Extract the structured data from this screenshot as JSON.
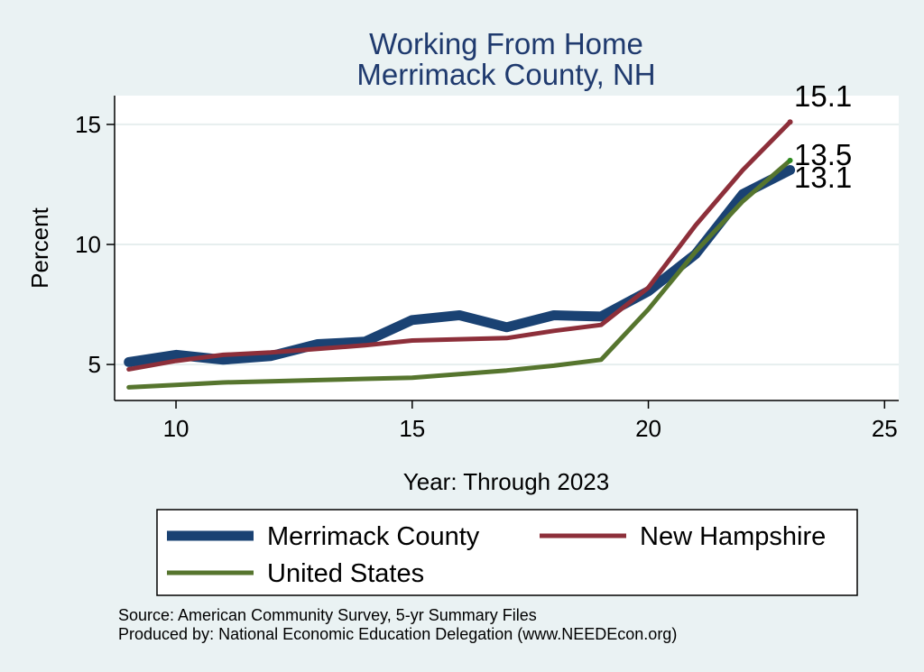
{
  "chart_data": {
    "type": "line",
    "title": [
      "Working From Home",
      "Merrimack County, NH"
    ],
    "xlabel": "Year: Through 2023",
    "ylabel": "Percent",
    "xlim": [
      8.7,
      25.3
    ],
    "ylim": [
      3.5,
      16.2
    ],
    "xticks": [
      10,
      15,
      20,
      25
    ],
    "yticks": [
      5,
      10,
      15
    ],
    "grid": true,
    "legend": "bottom",
    "series": [
      {
        "name": "Merrimack County",
        "color": "#1a4273",
        "x": [
          9,
          10,
          11,
          12,
          13,
          14,
          15,
          16,
          17,
          18,
          19,
          20,
          21,
          22,
          23
        ],
        "values": [
          5.1,
          5.4,
          5.2,
          5.35,
          5.85,
          5.95,
          6.85,
          7.05,
          6.55,
          7.05,
          7.0,
          8.05,
          9.6,
          12.1,
          13.1
        ],
        "end_label": "13.1"
      },
      {
        "name": "New Hampshire",
        "color": "#8d2f3a",
        "x": [
          9,
          10,
          11,
          12,
          13,
          14,
          15,
          16,
          17,
          18,
          19,
          20,
          21,
          22,
          23
        ],
        "values": [
          4.8,
          5.15,
          5.4,
          5.5,
          5.65,
          5.8,
          6.0,
          6.05,
          6.1,
          6.4,
          6.65,
          8.2,
          10.8,
          13.1,
          15.1
        ],
        "end_label": "15.1"
      },
      {
        "name": "United States",
        "color": "#56752e",
        "x": [
          9,
          10,
          11,
          12,
          13,
          14,
          15,
          16,
          17,
          18,
          19,
          20,
          21,
          22,
          23
        ],
        "values": [
          4.05,
          4.15,
          4.25,
          4.3,
          4.35,
          4.4,
          4.45,
          4.6,
          4.75,
          4.95,
          5.2,
          7.3,
          9.7,
          11.8,
          13.5
        ],
        "end_label": "13.5"
      }
    ],
    "notes": [
      "Source: American Community Survey, 5-yr Summary Files",
      "Produced by: National Economic Education Delegation (www.NEEDEcon.org)"
    ]
  }
}
